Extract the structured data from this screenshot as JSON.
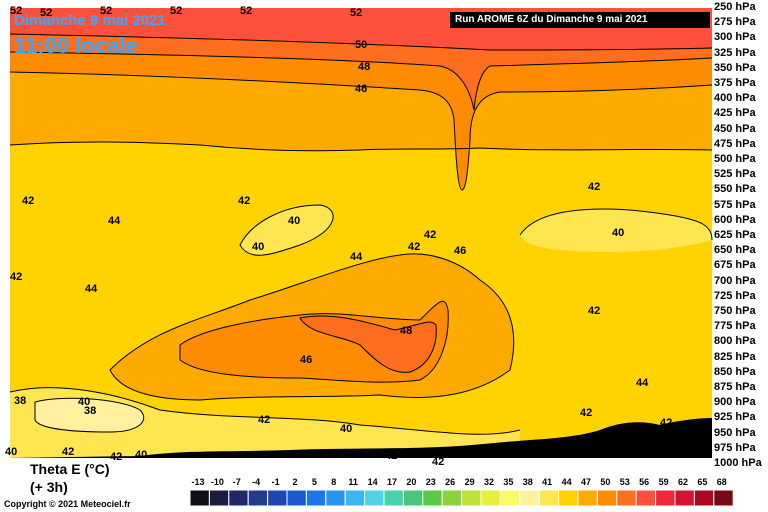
{
  "header": {
    "date": "Dimanche 9 mai 2021",
    "time": "11:00 locale",
    "run": "Run AROME 6Z du Dimanche 9 mai 2021"
  },
  "variable": {
    "line1": "Theta E (°C)",
    "line2": "(+ 3h)"
  },
  "copyright": "Copyright © 2021 Meteociel.fr",
  "chart_data": {
    "type": "heatmap",
    "quantity": "Theta E (°C)",
    "y_axis_levels": [
      "250 hPa",
      "275 hPa",
      "300 hPa",
      "325 hPa",
      "350 hPa",
      "375 hPa",
      "400 hPa",
      "425 hPa",
      "450 hPa",
      "475 hPa",
      "500 hPa",
      "525 hPa",
      "550 hPa",
      "575 hPa",
      "600 hPa",
      "625 hPa",
      "650 hPa",
      "675 hPa",
      "700 hPa",
      "725 hPa",
      "750 hPa",
      "775 hPa",
      "800 hPa",
      "825 hPa",
      "850 hPa",
      "875 hPa",
      "900 hPa",
      "925 hPa",
      "950 hPa",
      "975 hPa",
      "1000 hPa"
    ],
    "colorbar_ticks": [
      "-13",
      "-10",
      "-7",
      "-4",
      "-1",
      "2",
      "5",
      "8",
      "11",
      "14",
      "17",
      "20",
      "23",
      "26",
      "29",
      "32",
      "35",
      "38",
      "41",
      "44",
      "47",
      "50",
      "53",
      "56",
      "59",
      "62",
      "65",
      "68"
    ],
    "colorbar_colors": [
      "#101018",
      "#1c1c40",
      "#202868",
      "#243c90",
      "#2046b4",
      "#1c5ad2",
      "#1c78e6",
      "#2896f0",
      "#3cb4f0",
      "#50d2e6",
      "#46d2aa",
      "#46c878",
      "#5ac846",
      "#8cd23c",
      "#bee13c",
      "#e6f03c",
      "#fafa64",
      "#fff0a0",
      "#ffe650",
      "#ffd200",
      "#ffaa00",
      "#ff8c00",
      "#ff6e1e",
      "#ff503c",
      "#f0283c",
      "#d21432",
      "#aa0a1e",
      "#780a14"
    ],
    "contour_labels": [
      "52",
      "50",
      "48",
      "46",
      "44",
      "42",
      "40",
      "38"
    ]
  }
}
